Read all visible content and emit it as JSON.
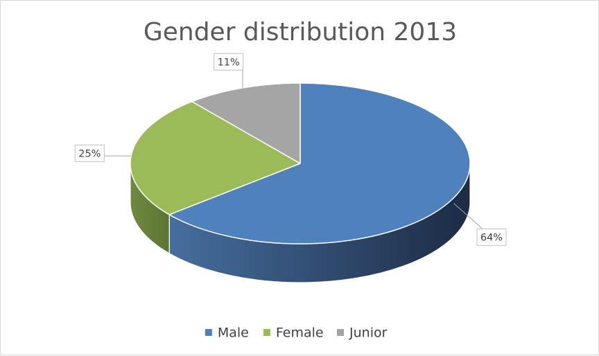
{
  "chart_data": {
    "type": "pie",
    "title": "Gender distribution 2013",
    "categories": [
      "Male",
      "Female",
      "Junior"
    ],
    "values": [
      64,
      25,
      11
    ],
    "value_labels": [
      "64%",
      "25%",
      "11%"
    ],
    "colors": [
      "#4F81BD",
      "#9BBB59",
      "#A5A5A5"
    ],
    "style": "3d",
    "legend": "bottom"
  }
}
